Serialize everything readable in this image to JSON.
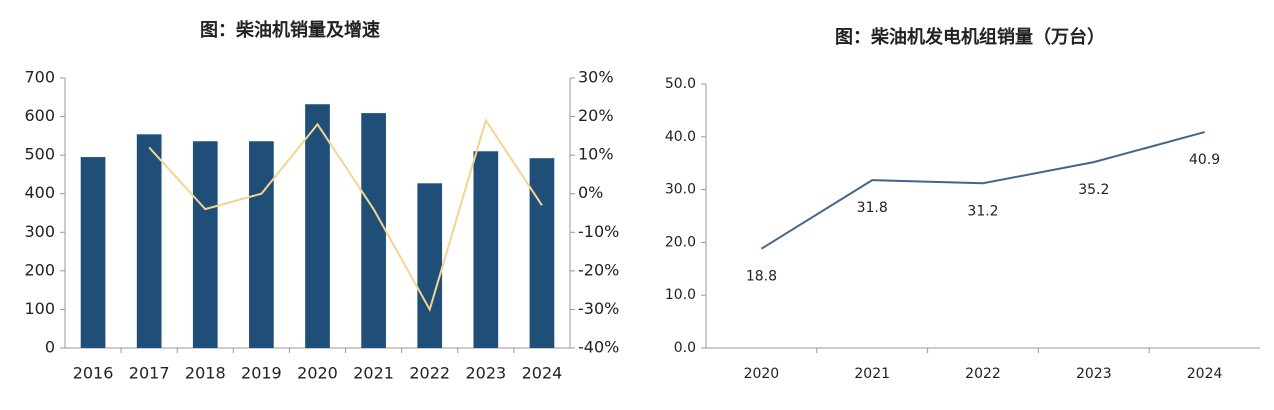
{
  "chart_data": [
    {
      "type": "combo",
      "title": "图：柴油机销量及增速",
      "categories": [
        "2016",
        "2017",
        "2018",
        "2019",
        "2020",
        "2021",
        "2022",
        "2023",
        "2024"
      ],
      "series": [
        {
          "type": "bar",
          "color": "#1f4e79",
          "values": [
            495,
            554,
            536,
            536,
            632,
            609,
            427,
            510,
            492
          ]
        },
        {
          "type": "line",
          "axis": "y2",
          "color": "#f2d58e",
          "values": [
            null,
            12,
            -4,
            0,
            18,
            -4,
            -30,
            19,
            -3
          ]
        }
      ],
      "ylim": [
        0,
        700
      ],
      "yticks": [
        0,
        100,
        200,
        300,
        400,
        500,
        600,
        700
      ],
      "y2lim": [
        -40,
        30
      ],
      "y2ticks": [
        {
          "value": -40,
          "label": "-40%"
        },
        {
          "value": -30,
          "label": "-30%"
        },
        {
          "value": -20,
          "label": "-20%"
        },
        {
          "value": -10,
          "label": "-10%"
        },
        {
          "value": 0,
          "label": "0%"
        },
        {
          "value": 10,
          "label": "10%"
        },
        {
          "value": 20,
          "label": "20%"
        },
        {
          "value": 30,
          "label": "30%"
        }
      ]
    },
    {
      "type": "line",
      "title": "图：柴油机发电机组销量（万台）",
      "categories": [
        "2020",
        "2021",
        "2022",
        "2023",
        "2024"
      ],
      "series": [
        {
          "color": "#44648c",
          "values": [
            18.8,
            31.8,
            31.2,
            35.2,
            40.9
          ]
        }
      ],
      "data_labels": true,
      "ylim": [
        0,
        50
      ],
      "yticks": [
        {
          "value": 0,
          "label": "0.0"
        },
        {
          "value": 10,
          "label": "10.0"
        },
        {
          "value": 20,
          "label": "20.0"
        },
        {
          "value": 30,
          "label": "30.0"
        },
        {
          "value": 40,
          "label": "40.0"
        },
        {
          "value": 50,
          "label": "50.0"
        }
      ]
    }
  ]
}
